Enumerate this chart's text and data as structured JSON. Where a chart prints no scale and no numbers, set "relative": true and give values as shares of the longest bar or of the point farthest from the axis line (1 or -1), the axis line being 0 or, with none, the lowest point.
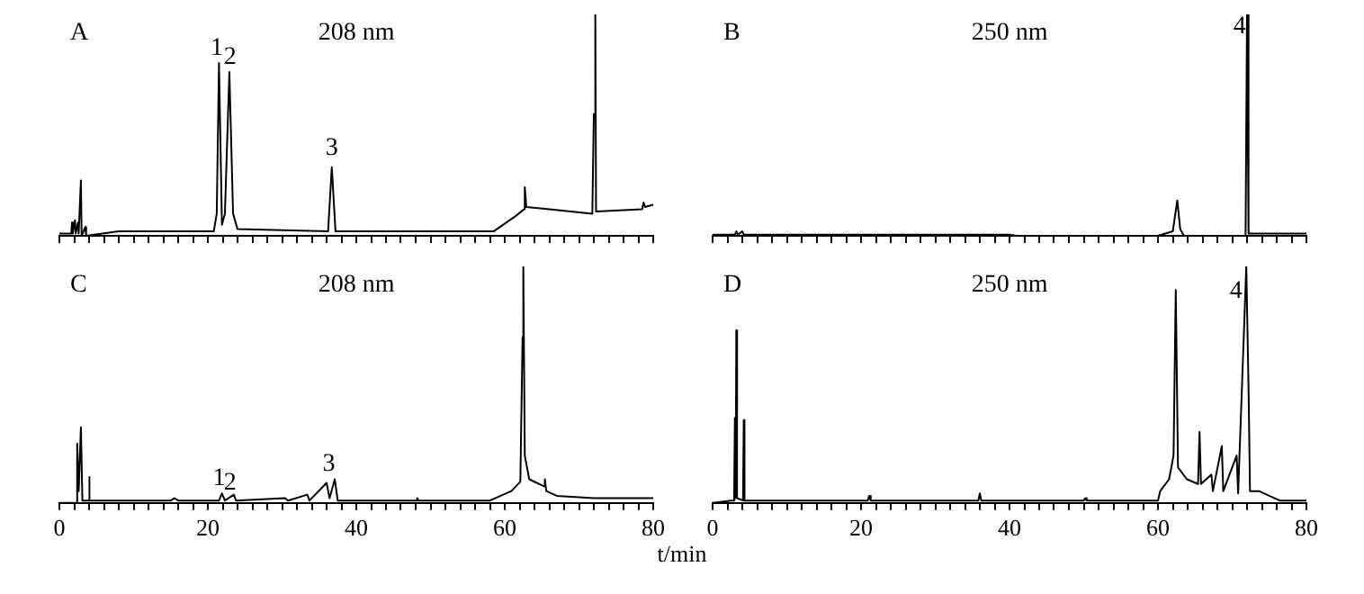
{
  "chart_data": [
    {
      "type": "line",
      "title": "A",
      "subtitle": "208 nm",
      "relative": true,
      "color": "#000000",
      "xlim": [
        0,
        80
      ],
      "tick_labels": false,
      "legend": false,
      "grid": false,
      "xticks": [
        0,
        2,
        4,
        6,
        8,
        10,
        12,
        14,
        16,
        18,
        20,
        22,
        24,
        26,
        28,
        30,
        32,
        34,
        36,
        38,
        40,
        42,
        44,
        46,
        48,
        50,
        52,
        54,
        56,
        58,
        60,
        62,
        64,
        66,
        68,
        70,
        72,
        74,
        76,
        78,
        80
      ],
      "x": [
        0,
        1.6,
        1.7,
        1.8,
        2.1,
        2.2,
        2.5,
        2.6,
        2.9,
        3.0,
        3.5,
        3.6,
        8,
        20.8,
        21.2,
        21.5,
        21.9,
        22.3,
        22.9,
        23.4,
        24,
        36.2,
        36.7,
        37.2,
        58.5,
        61.5,
        62.6,
        62.7,
        62.9,
        66,
        71.8,
        72.0,
        72.2,
        72.3,
        78.5,
        78.7,
        78.9,
        80
      ],
      "values": [
        0.01,
        0.01,
        0.06,
        0.01,
        0.07,
        0.01,
        0.06,
        0.01,
        0.25,
        0,
        0.04,
        0,
        0.02,
        0.02,
        0.1,
        0.78,
        0.05,
        0.1,
        0.74,
        0.1,
        0.03,
        0.02,
        0.31,
        0.02,
        0.02,
        0.09,
        0.12,
        0.22,
        0.13,
        0.12,
        0.1,
        0.55,
        1,
        0.11,
        0.12,
        0.15,
        0.13,
        0.14
      ],
      "annotations": [
        {
          "text": "1",
          "x": 21.2,
          "y": 0.8
        },
        {
          "text": "2",
          "x": 23.0,
          "y": 0.76
        },
        {
          "text": "3",
          "x": 36.7,
          "y": 0.35
        }
      ]
    },
    {
      "type": "line",
      "title": "B",
      "subtitle": "250 nm",
      "relative": true,
      "color": "#000000",
      "xlim": [
        0,
        80
      ],
      "tick_labels": false,
      "legend": false,
      "grid": false,
      "xticks": [
        0,
        2,
        4,
        6,
        8,
        10,
        12,
        14,
        16,
        18,
        20,
        22,
        24,
        26,
        28,
        30,
        32,
        34,
        36,
        38,
        40,
        42,
        44,
        46,
        48,
        50,
        52,
        54,
        56,
        58,
        60,
        62,
        64,
        66,
        68,
        70,
        72,
        74,
        76,
        78,
        80
      ],
      "x": [
        0,
        3,
        3.2,
        3.4,
        4,
        4.2,
        40,
        41,
        60,
        62.0,
        62.6,
        63.0,
        63.5,
        71.8,
        72.0,
        72.2,
        80
      ],
      "values": [
        0.005,
        0.005,
        0.02,
        0.005,
        0.02,
        0.005,
        0.005,
        0,
        0,
        0.02,
        0.16,
        0.03,
        0,
        0,
        1,
        0.01,
        0.01
      ],
      "annotations": [
        {
          "text": "4",
          "x": 71.0,
          "y": 0.9
        }
      ]
    },
    {
      "type": "line",
      "title": "C",
      "subtitle": "208 nm",
      "relative": true,
      "color": "#000000",
      "xlim": [
        0,
        80
      ],
      "tick_labels": "x",
      "legend": false,
      "grid": false,
      "xlabel": "t/min",
      "xticks": [
        0,
        {
          "value": 2,
          "label": null
        },
        {
          "value": 4,
          "label": null
        },
        {
          "value": 6,
          "label": null
        },
        {
          "value": 8,
          "label": null
        },
        {
          "value": 10,
          "label": null
        },
        {
          "value": 12,
          "label": null
        },
        {
          "value": 14,
          "label": null
        },
        {
          "value": 16,
          "label": null
        },
        {
          "value": 18,
          "label": null
        },
        20,
        {
          "value": 22,
          "label": null
        },
        {
          "value": 24,
          "label": null
        },
        {
          "value": 26,
          "label": null
        },
        {
          "value": 28,
          "label": null
        },
        {
          "value": 30,
          "label": null
        },
        {
          "value": 32,
          "label": null
        },
        {
          "value": 34,
          "label": null
        },
        {
          "value": 36,
          "label": null
        },
        {
          "value": 38,
          "label": null
        },
        40,
        {
          "value": 42,
          "label": null
        },
        {
          "value": 44,
          "label": null
        },
        {
          "value": 46,
          "label": null
        },
        {
          "value": 48,
          "label": null
        },
        {
          "value": 50,
          "label": null
        },
        {
          "value": 52,
          "label": null
        },
        {
          "value": 54,
          "label": null
        },
        {
          "value": 56,
          "label": null
        },
        {
          "value": 58,
          "label": null
        },
        60,
        {
          "value": 62,
          "label": null
        },
        {
          "value": 64,
          "label": null
        },
        {
          "value": 66,
          "label": null
        },
        {
          "value": 68,
          "label": null
        },
        {
          "value": 70,
          "label": null
        },
        {
          "value": 72,
          "label": null
        },
        {
          "value": 74,
          "label": null
        },
        {
          "value": 76,
          "label": null
        },
        {
          "value": 78,
          "label": null
        },
        80
      ],
      "x": [
        0,
        2.2,
        2.4,
        2.6,
        2.9,
        3.1,
        3.9,
        4.0,
        4.1,
        15,
        15.5,
        16,
        21.5,
        21.9,
        22.3,
        23.5,
        23.8,
        30.4,
        30.8,
        33.4,
        33.7,
        36.0,
        36.4,
        37.1,
        37.5,
        48,
        48.2,
        48.4,
        58,
        60.9,
        62.1,
        62.4,
        62.5,
        62.7,
        63.3,
        65.3,
        65.4,
        65.6,
        67,
        72,
        80
      ],
      "values": [
        0,
        0,
        0.25,
        0.05,
        0.32,
        0.01,
        0.01,
        0.11,
        0.01,
        0.01,
        0.02,
        0.01,
        0.01,
        0.04,
        0.01,
        0.035,
        0.01,
        0.02,
        0.01,
        0.035,
        0.01,
        0.085,
        0.02,
        0.1,
        0.01,
        0.01,
        0.02,
        0.01,
        0.01,
        0.05,
        0.09,
        0.7,
        1,
        0.2,
        0.1,
        0.07,
        0.1,
        0.05,
        0.03,
        0.02,
        0.02
      ],
      "annotations": [
        {
          "text": "1",
          "x": 21.5,
          "y": 0.06
        },
        {
          "text": "2",
          "x": 23.0,
          "y": 0.04
        },
        {
          "text": "3",
          "x": 36.3,
          "y": 0.12
        }
      ]
    },
    {
      "type": "line",
      "title": "D",
      "subtitle": "250 nm",
      "relative": true,
      "color": "#000000",
      "xlim": [
        0,
        80
      ],
      "tick_labels": "x",
      "legend": false,
      "grid": false,
      "xticks": [
        0,
        {
          "value": 2,
          "label": null
        },
        {
          "value": 4,
          "label": null
        },
        {
          "value": 6,
          "label": null
        },
        {
          "value": 8,
          "label": null
        },
        {
          "value": 10,
          "label": null
        },
        {
          "value": 12,
          "label": null
        },
        {
          "value": 14,
          "label": null
        },
        {
          "value": 16,
          "label": null
        },
        {
          "value": 18,
          "label": null
        },
        20,
        {
          "value": 22,
          "label": null
        },
        {
          "value": 24,
          "label": null
        },
        {
          "value": 26,
          "label": null
        },
        {
          "value": 28,
          "label": null
        },
        {
          "value": 30,
          "label": null
        },
        {
          "value": 32,
          "label": null
        },
        {
          "value": 34,
          "label": null
        },
        {
          "value": 36,
          "label": null
        },
        {
          "value": 38,
          "label": null
        },
        40,
        {
          "value": 42,
          "label": null
        },
        {
          "value": 44,
          "label": null
        },
        {
          "value": 46,
          "label": null
        },
        {
          "value": 48,
          "label": null
        },
        {
          "value": 50,
          "label": null
        },
        {
          "value": 52,
          "label": null
        },
        {
          "value": 54,
          "label": null
        },
        {
          "value": 56,
          "label": null
        },
        {
          "value": 58,
          "label": null
        },
        60,
        {
          "value": 62,
          "label": null
        },
        {
          "value": 64,
          "label": null
        },
        {
          "value": 66,
          "label": null
        },
        {
          "value": 68,
          "label": null
        },
        {
          "value": 70,
          "label": null
        },
        {
          "value": 72,
          "label": null
        },
        {
          "value": 74,
          "label": null
        },
        {
          "value": 76,
          "label": null
        },
        {
          "value": 78,
          "label": null
        },
        80
      ],
      "x": [
        0,
        2.5,
        2.9,
        3.0,
        3.1,
        3.2,
        3.3,
        4.1,
        4.2,
        4.3,
        20.9,
        21.1,
        21.3,
        35.8,
        36.0,
        36.2,
        50,
        50.2,
        50.4,
        60,
        60.3,
        61.5,
        62.1,
        62.4,
        62.7,
        63.9,
        65.4,
        65.6,
        65.8,
        67.2,
        67.4,
        68.6,
        68.8,
        70.6,
        70.8,
        71.9,
        72.2,
        72.4,
        73.6,
        76.4,
        80
      ],
      "values": [
        0,
        0.01,
        0.01,
        0.36,
        0.02,
        0.73,
        0.02,
        0.01,
        0.35,
        0.01,
        0.01,
        0.03,
        0.01,
        0.01,
        0.04,
        0.01,
        0.01,
        0.02,
        0.01,
        0.01,
        0.05,
        0.1,
        0.2,
        0.9,
        0.15,
        0.1,
        0.08,
        0.3,
        0.08,
        0.12,
        0.05,
        0.24,
        0.05,
        0.2,
        0.04,
        1,
        0.49,
        0.05,
        0.05,
        0.01,
        0.01
      ],
      "annotations": [
        {
          "text": "4",
          "x": 70.5,
          "y": 0.85
        }
      ]
    }
  ]
}
